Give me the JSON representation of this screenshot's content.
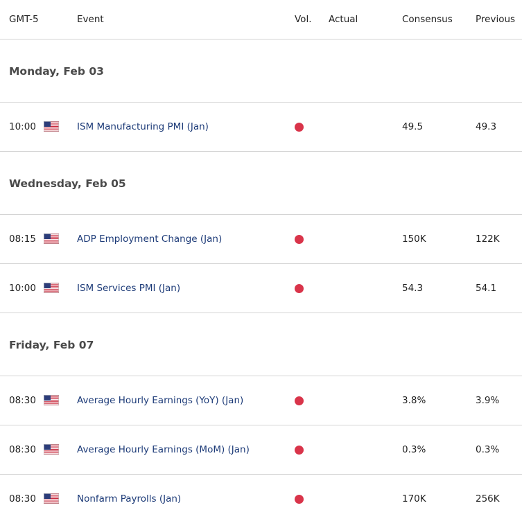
{
  "header": {
    "columns": [
      "GMT-5",
      "Event",
      "Vol.",
      "Actual",
      "Consensus",
      "Previous"
    ]
  },
  "days": [
    {
      "date": "Monday, Feb 03",
      "events": [
        {
          "time": "10:00",
          "event": "ISM Manufacturing PMI (Jan)",
          "consensus": "49.5",
          "previous": "49.3"
        }
      ]
    },
    {
      "date": "Wednesday, Feb 05",
      "events": [
        {
          "time": "08:15",
          "event": "ADP Employment Change (Jan)",
          "consensus": "150K",
          "previous": "122K"
        },
        {
          "time": "10:00",
          "event": "ISM Services PMI (Jan)",
          "consensus": "54.3",
          "previous": "54.1"
        }
      ]
    },
    {
      "date": "Friday, Feb 07",
      "events": [
        {
          "time": "08:30",
          "event": "Average Hourly Earnings (YoY) (Jan)",
          "consensus": "3.8%",
          "previous": "3.9%"
        },
        {
          "time": "08:30",
          "event": "Average Hourly Earnings (MoM) (Jan)",
          "consensus": "0.3%",
          "previous": "0.3%"
        },
        {
          "time": "08:30",
          "event": "Nonfarm Payrolls (Jan)",
          "consensus": "170K",
          "previous": "256K"
        }
      ]
    }
  ]
}
